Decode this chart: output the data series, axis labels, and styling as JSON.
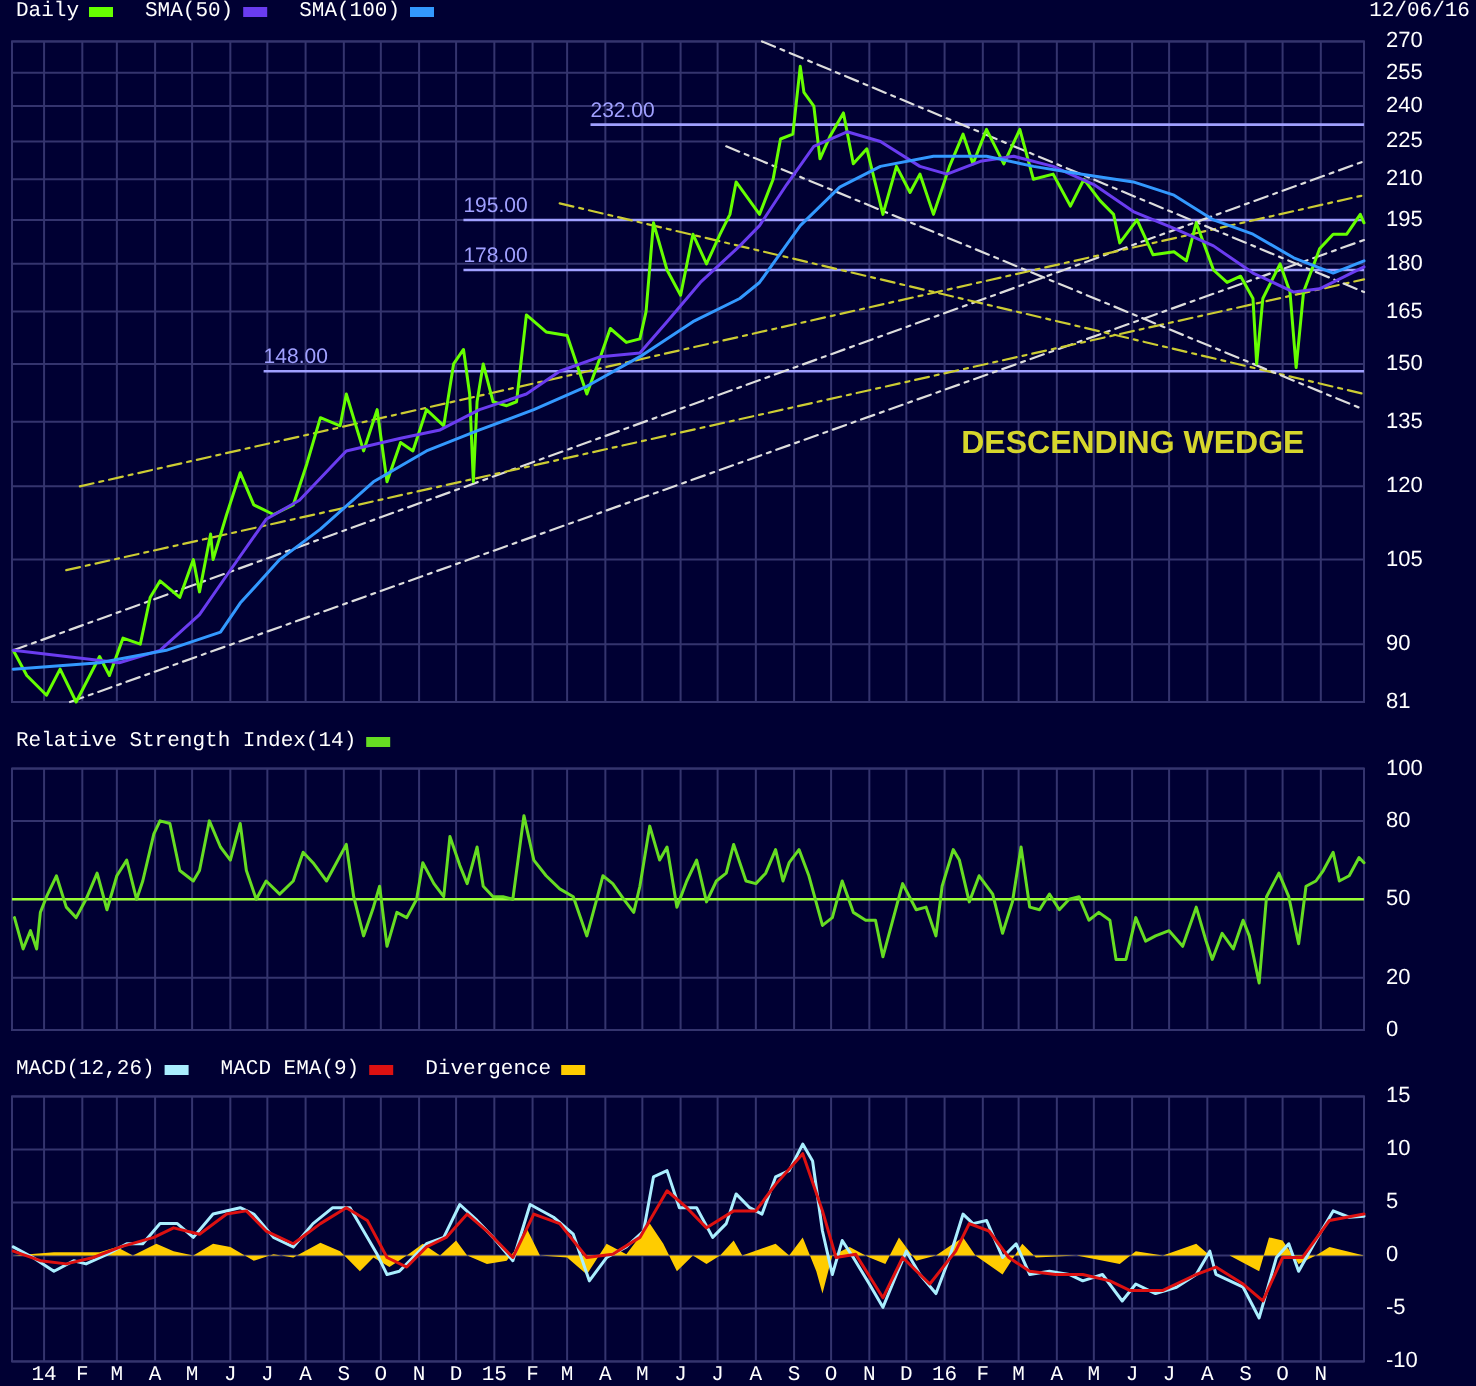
{
  "chart_data": [
    {
      "type": "line",
      "xlim": [
        "2013-12-06",
        "2016-12-06"
      ],
      "ylim": [
        81,
        270
      ],
      "log": true,
      "yticks": [
        81,
        90,
        105,
        120,
        135,
        150,
        165,
        180,
        195,
        210,
        225,
        240,
        255,
        270
      ],
      "xticks": [
        {
          "value": "2014-01-01",
          "label": null
        },
        {
          "value": "2014-02-01",
          "label": null
        },
        {
          "value": "2014-03-01",
          "label": null
        },
        {
          "value": "2014-04-01",
          "label": null
        },
        {
          "value": "2014-05-01",
          "label": null
        },
        {
          "value": "2014-06-01",
          "label": null
        },
        {
          "value": "2014-07-01",
          "label": null
        },
        {
          "value": "2014-08-01",
          "label": null
        },
        {
          "value": "2014-09-01",
          "label": null
        },
        {
          "value": "2014-10-01",
          "label": null
        },
        {
          "value": "2014-11-01",
          "label": null
        },
        {
          "value": "2014-12-01",
          "label": null
        },
        {
          "value": "2015-01-01",
          "label": null
        },
        {
          "value": "2015-02-01",
          "label": null
        },
        {
          "value": "2015-03-01",
          "label": null
        },
        {
          "value": "2015-04-01",
          "label": null
        },
        {
          "value": "2015-05-01",
          "label": null
        },
        {
          "value": "2015-06-01",
          "label": null
        },
        {
          "value": "2015-07-01",
          "label": null
        },
        {
          "value": "2015-08-01",
          "label": null
        },
        {
          "value": "2015-09-01",
          "label": null
        },
        {
          "value": "2015-10-01",
          "label": null
        },
        {
          "value": "2015-11-01",
          "label": null
        },
        {
          "value": "2015-12-01",
          "label": null
        },
        {
          "value": "2016-01-01",
          "label": null
        },
        {
          "value": "2016-02-01",
          "label": null
        },
        {
          "value": "2016-03-01",
          "label": null
        },
        {
          "value": "2016-04-01",
          "label": null
        },
        {
          "value": "2016-05-01",
          "label": null
        },
        {
          "value": "2016-06-01",
          "label": null
        },
        {
          "value": "2016-07-01",
          "label": null
        },
        {
          "value": "2016-08-01",
          "label": null
        },
        {
          "value": "2016-09-01",
          "label": null
        },
        {
          "value": "2016-10-01",
          "label": null
        },
        {
          "value": "2016-11-01",
          "label": null
        }
      ],
      "tick_labels": "y",
      "grid": true,
      "legend": "top left",
      "series": [
        {
          "name": "Daily",
          "color": "#66ff00",
          "x": [
            "2013-12-07",
            "2013-12-18",
            "2014-01-03",
            "2014-01-14",
            "2014-01-27",
            "2014-02-15",
            "2014-02-23",
            "2014-03-06",
            "2014-03-20",
            "2014-03-28",
            "2014-04-05",
            "2014-04-21",
            "2014-05-02",
            "2014-05-07",
            "2014-05-16",
            "2014-05-18",
            "2014-05-29",
            "2014-06-09",
            "2014-06-20",
            "2014-07-06",
            "2014-07-22",
            "2014-08-02",
            "2014-08-13",
            "2014-08-29",
            "2014-09-03",
            "2014-09-17",
            "2014-09-28",
            "2014-10-06",
            "2014-10-17",
            "2014-10-27",
            "2014-11-07",
            "2014-11-21",
            "2014-11-29",
            "2014-12-07",
            "2014-12-12",
            "2014-12-15",
            "2014-12-18",
            "2014-12-23",
            "2014-12-31",
            "2015-01-11",
            "2015-01-19",
            "2015-01-27",
            "2015-02-12",
            "2015-03-01",
            "2015-03-17",
            "2015-03-28",
            "2015-04-05",
            "2015-04-18",
            "2015-04-29",
            "2015-05-04",
            "2015-05-10",
            "2015-05-21",
            "2015-06-01",
            "2015-06-11",
            "2015-06-22",
            "2015-07-03",
            "2015-07-11",
            "2015-07-16",
            "2015-08-04",
            "2015-08-15",
            "2015-08-21",
            "2015-08-31",
            "2015-09-06",
            "2015-09-09",
            "2015-09-17",
            "2015-09-22",
            "2015-09-30",
            "2015-10-11",
            "2015-10-19",
            "2015-10-30",
            "2015-11-12",
            "2015-11-23",
            "2015-12-04",
            "2015-12-12",
            "2015-12-23",
            "2016-01-05",
            "2016-01-16",
            "2016-01-24",
            "2016-02-04",
            "2016-02-18",
            "2016-03-02",
            "2016-03-13",
            "2016-03-29",
            "2016-04-12",
            "2016-04-23",
            "2016-05-06",
            "2016-05-17",
            "2016-05-22",
            "2016-06-05",
            "2016-06-18",
            "2016-07-05",
            "2016-07-15",
            "2016-07-23",
            "2016-08-06",
            "2016-08-17",
            "2016-08-28",
            "2016-09-07",
            "2016-09-10",
            "2016-09-15",
            "2016-09-29",
            "2016-10-07",
            "2016-10-12",
            "2016-10-18",
            "2016-10-31",
            "2016-11-11",
            "2016-11-22",
            "2016-12-03",
            "2016-12-06"
          ],
          "values": [
            89,
            85,
            82,
            86,
            81,
            88,
            85,
            91,
            90,
            98,
            101,
            98,
            105,
            99,
            110,
            105,
            114,
            123,
            116,
            114,
            116,
            125,
            136,
            134,
            142,
            128,
            138,
            121,
            130,
            128,
            138,
            134,
            150,
            154,
            142,
            121,
            140,
            150,
            140,
            139,
            140,
            164,
            159,
            158,
            142,
            152,
            160,
            156,
            157,
            165,
            194,
            178,
            170,
            190,
            180,
            190,
            197,
            209,
            197,
            210,
            226,
            228,
            258,
            246,
            240,
            218,
            227,
            237,
            216,
            222,
            197,
            215,
            205,
            212,
            197,
            215,
            228,
            216,
            230,
            216,
            230,
            210,
            212,
            200,
            210,
            202,
            197,
            187,
            195,
            183,
            184,
            181,
            194,
            178,
            174,
            176,
            169,
            150,
            169,
            180,
            171,
            149,
            171,
            185,
            190,
            190,
            197,
            194
          ]
        },
        {
          "name": "SMA(50)",
          "color": "#6a3cf0",
          "x": [
            "2013-12-07",
            "2014-01-19",
            "2014-03-03",
            "2014-04-05",
            "2014-05-07",
            "2014-05-29",
            "2014-06-30",
            "2014-07-27",
            "2014-09-03",
            "2014-10-17",
            "2014-11-18",
            "2014-12-20",
            "2015-01-27",
            "2015-02-23",
            "2015-03-28",
            "2015-04-29",
            "2015-05-21",
            "2015-06-17",
            "2015-07-19",
            "2015-08-04",
            "2015-08-26",
            "2015-09-17",
            "2015-10-14",
            "2015-11-10",
            "2015-12-12",
            "2016-01-03",
            "2016-01-30",
            "2016-02-26",
            "2016-03-29",
            "2016-05-01",
            "2016-06-02",
            "2016-07-05",
            "2016-08-06",
            "2016-09-07",
            "2016-10-10",
            "2016-10-31",
            "2016-12-06"
          ],
          "values": [
            89,
            88,
            87,
            89,
            95,
            102,
            113,
            117,
            128,
            131,
            133,
            138,
            142,
            148,
            152,
            153,
            162,
            174,
            186,
            193,
            208,
            223,
            229,
            225,
            215,
            212,
            217,
            219,
            215,
            208,
            198,
            192,
            186,
            177,
            171,
            172,
            179
          ]
        },
        {
          "name": "SMA(100)",
          "color": "#3399ff",
          "x": [
            "2013-12-07",
            "2014-02-15",
            "2014-04-10",
            "2014-05-24",
            "2014-06-09",
            "2014-07-11",
            "2014-08-13",
            "2014-09-25",
            "2014-11-07",
            "2014-12-20",
            "2015-02-02",
            "2015-03-17",
            "2015-04-29",
            "2015-06-11",
            "2015-07-19",
            "2015-08-04",
            "2015-09-06",
            "2015-10-08",
            "2015-11-10",
            "2015-12-23",
            "2016-02-04",
            "2016-03-13",
            "2016-04-20",
            "2016-06-02",
            "2016-07-05",
            "2016-08-06",
            "2016-09-07",
            "2016-10-10",
            "2016-11-11",
            "2016-12-06"
          ],
          "values": [
            86,
            87,
            89,
            92,
            97,
            105,
            111,
            121,
            128,
            133,
            138,
            144,
            152,
            162,
            169,
            174,
            193,
            207,
            215,
            219,
            219,
            215,
            212,
            209,
            204,
            195,
            190,
            182,
            177,
            181
          ]
        },
        {
          "type": "line",
          "color": "#dddddd",
          "line_style": "dashed",
          "x": [
            "2013-12-07",
            "2016-12-06"
          ],
          "values": [
            89,
            217
          ]
        },
        {
          "type": "line",
          "color": "#dddddd",
          "line_style": "dashed",
          "x": [
            "2014-01-22",
            "2016-12-06"
          ],
          "values": [
            81,
            188
          ]
        },
        {
          "type": "line",
          "color": "#cccc33",
          "line_style": "dashed",
          "x": [
            "2014-01-30",
            "2016-12-06"
          ],
          "values": [
            120,
            204
          ]
        },
        {
          "type": "line",
          "color": "#cccc33",
          "line_style": "dashed",
          "x": [
            "2014-01-19",
            "2016-12-06"
          ],
          "values": [
            103,
            175
          ]
        },
        {
          "type": "line",
          "color": "#cccc33",
          "line_style": "dashed",
          "x": [
            "2015-02-23",
            "2016-12-06"
          ],
          "values": [
            201,
            142
          ]
        },
        {
          "type": "line",
          "color": "#dddddd",
          "line_style": "dashed",
          "x": [
            "2015-08-06",
            "2016-12-06"
          ],
          "values": [
            270,
            171
          ]
        },
        {
          "type": "line",
          "color": "#dddddd",
          "line_style": "dashed",
          "x": [
            "2015-07-08",
            "2016-12-06"
          ],
          "values": [
            223,
            138
          ]
        }
      ],
      "ref_lines": [
        {
          "axis": "y",
          "value": 232,
          "label": "232.00",
          "color": "#a0a0ff"
        },
        {
          "axis": "y",
          "value": 195,
          "label": "195.00",
          "color": "#a0a0ff"
        },
        {
          "axis": "y",
          "value": 178,
          "label": "178.00",
          "color": "#a0a0ff"
        },
        {
          "axis": "y",
          "value": 148,
          "label": "148.00",
          "color": "#a0a0ff"
        }
      ],
      "annotations": [
        "12/06/16",
        "DESCENDING WEDGE"
      ]
    },
    {
      "type": "line",
      "xlim": [
        "2013-12-06",
        "2016-12-06"
      ],
      "ylim": [
        0,
        100
      ],
      "yticks": [
        0,
        20,
        50,
        80,
        100
      ],
      "xticks": [
        {
          "value": "2014-01-01",
          "label": null
        },
        {
          "value": "2014-02-01",
          "label": null
        },
        {
          "value": "2014-03-01",
          "label": null
        },
        {
          "value": "2014-04-01",
          "label": null
        },
        {
          "value": "2014-05-01",
          "label": null
        },
        {
          "value": "2014-06-01",
          "label": null
        },
        {
          "value": "2014-07-01",
          "label": null
        },
        {
          "value": "2014-08-01",
          "label": null
        },
        {
          "value": "2014-09-01",
          "label": null
        },
        {
          "value": "2014-10-01",
          "label": null
        },
        {
          "value": "2014-11-01",
          "label": null
        },
        {
          "value": "2014-12-01",
          "label": null
        },
        {
          "value": "2015-01-01",
          "label": null
        },
        {
          "value": "2015-02-01",
          "label": null
        },
        {
          "value": "2015-03-01",
          "label": null
        },
        {
          "value": "2015-04-01",
          "label": null
        },
        {
          "value": "2015-05-01",
          "label": null
        },
        {
          "value": "2015-06-01",
          "label": null
        },
        {
          "value": "2015-07-01",
          "label": null
        },
        {
          "value": "2015-08-01",
          "label": null
        },
        {
          "value": "2015-09-01",
          "label": null
        },
        {
          "value": "2015-10-01",
          "label": null
        },
        {
          "value": "2015-11-01",
          "label": null
        },
        {
          "value": "2015-12-01",
          "label": null
        },
        {
          "value": "2016-01-01",
          "label": null
        },
        {
          "value": "2016-02-01",
          "label": null
        },
        {
          "value": "2016-03-01",
          "label": null
        },
        {
          "value": "2016-04-01",
          "label": null
        },
        {
          "value": "2016-05-01",
          "label": null
        },
        {
          "value": "2016-06-01",
          "label": null
        },
        {
          "value": "2016-07-01",
          "label": null
        },
        {
          "value": "2016-08-01",
          "label": null
        },
        {
          "value": "2016-09-01",
          "label": null
        },
        {
          "value": "2016-10-01",
          "label": null
        },
        {
          "value": "2016-11-01",
          "label": null
        }
      ],
      "tick_labels": "y",
      "grid": true,
      "legend": "top left",
      "series": [
        {
          "name": "Relative Strength Index(14)",
          "color": "#66dd22",
          "x": [
            "2013-12-08",
            "2013-12-15",
            "2013-12-21",
            "2013-12-26",
            "2013-12-29",
            "2014-01-03",
            "2014-01-11",
            "2014-01-19",
            "2014-01-27",
            "2014-02-04",
            "2014-02-13",
            "2014-02-21",
            "2014-03-01",
            "2014-03-09",
            "2014-03-17",
            "2014-03-22",
            "2014-03-31",
            "2014-04-05",
            "2014-04-13",
            "2014-04-21",
            "2014-05-02",
            "2014-05-07",
            "2014-05-15",
            "2014-05-24",
            "2014-06-01",
            "2014-06-09",
            "2014-06-14",
            "2014-06-22",
            "2014-06-30",
            "2014-07-11",
            "2014-07-22",
            "2014-07-30",
            "2014-08-07",
            "2014-08-18",
            "2014-08-26",
            "2014-09-03",
            "2014-09-09",
            "2014-09-17",
            "2014-09-25",
            "2014-09-30",
            "2014-10-06",
            "2014-10-14",
            "2014-10-22",
            "2014-10-30",
            "2014-11-04",
            "2014-11-13",
            "2014-11-21",
            "2014-11-26",
            "2014-12-04",
            "2014-12-10",
            "2014-12-18",
            "2014-12-23",
            "2014-12-31",
            "2015-01-08",
            "2015-01-16",
            "2015-01-25",
            "2015-02-02",
            "2015-02-12",
            "2015-02-23",
            "2015-03-06",
            "2015-03-17",
            "2015-03-25",
            "2015-03-30",
            "2015-04-07",
            "2015-04-16",
            "2015-04-24",
            "2015-04-29",
            "2015-05-07",
            "2015-05-15",
            "2015-05-21",
            "2015-05-29",
            "2015-06-06",
            "2015-06-14",
            "2015-06-22",
            "2015-06-30",
            "2015-07-08",
            "2015-07-14",
            "2015-07-24",
            "2015-08-01",
            "2015-08-09",
            "2015-08-17",
            "2015-08-23",
            "2015-08-28",
            "2015-09-05",
            "2015-09-13",
            "2015-09-24",
            "2015-10-02",
            "2015-10-10",
            "2015-10-19",
            "2015-10-29",
            "2015-11-06",
            "2015-11-12",
            "2015-11-20",
            "2015-11-28",
            "2015-12-09",
            "2015-12-17",
            "2015-12-25",
            "2015-12-30",
            "2016-01-08",
            "2016-01-13",
            "2016-01-21",
            "2016-01-29",
            "2016-02-09",
            "2016-02-17",
            "2016-02-25",
            "2016-03-03",
            "2016-03-10",
            "2016-03-18",
            "2016-03-26",
            "2016-04-03",
            "2016-04-11",
            "2016-04-19",
            "2016-04-27",
            "2016-05-05",
            "2016-05-14",
            "2016-05-19",
            "2016-05-27",
            "2016-06-04",
            "2016-06-12",
            "2016-06-20",
            "2016-07-01",
            "2016-07-12",
            "2016-07-23",
            "2016-07-31",
            "2016-08-05",
            "2016-08-13",
            "2016-08-22",
            "2016-08-30",
            "2016-09-04",
            "2016-09-12",
            "2016-09-18",
            "2016-09-28",
            "2016-10-06",
            "2016-10-14",
            "2016-10-20",
            "2016-10-28",
            "2016-11-03",
            "2016-11-11",
            "2016-11-16",
            "2016-11-24",
            "2016-12-02",
            "2016-12-06"
          ],
          "values": [
            43,
            31,
            38,
            31,
            45,
            51,
            59,
            47,
            43,
            50,
            60,
            46,
            59,
            65,
            50,
            57,
            75,
            80,
            79,
            61,
            57,
            61,
            80,
            70,
            65,
            79,
            61,
            50,
            57,
            52,
            57,
            68,
            64,
            57,
            64,
            71,
            51,
            36,
            47,
            55,
            32,
            45,
            43,
            50,
            64,
            56,
            51,
            74,
            63,
            56,
            70,
            55,
            51,
            51,
            50,
            82,
            65,
            59,
            54,
            51,
            36,
            50,
            59,
            56,
            50,
            45,
            55,
            78,
            65,
            70,
            47,
            57,
            65,
            49,
            57,
            60,
            71,
            57,
            56,
            60,
            69,
            57,
            64,
            69,
            59,
            40,
            43,
            57,
            45,
            42,
            42,
            28,
            42,
            56,
            46,
            47,
            36,
            55,
            69,
            65,
            49,
            59,
            52,
            37,
            49,
            70,
            47,
            46,
            52,
            46,
            50,
            51,
            42,
            45,
            42,
            27,
            27,
            43,
            34,
            36,
            38,
            32,
            47,
            34,
            27,
            37,
            31,
            42,
            36,
            18,
            51,
            60,
            51,
            33,
            55,
            57,
            61,
            68,
            57,
            59,
            66,
            64
          ]
        }
      ],
      "ref_lines": [
        {
          "axis": "y",
          "value": 50,
          "color": "#99ff33"
        }
      ]
    },
    {
      "type": "line",
      "xlim": [
        "2013-12-06",
        "2016-12-06"
      ],
      "ylim": [
        -10,
        15
      ],
      "yticks": [
        -10,
        -5,
        0,
        5,
        10,
        15
      ],
      "xticks": [
        {
          "value": "2014-01-01",
          "label": "14"
        },
        {
          "value": "2014-02-01",
          "label": "F"
        },
        {
          "value": "2014-03-01",
          "label": "M"
        },
        {
          "value": "2014-04-01",
          "label": "A"
        },
        {
          "value": "2014-05-01",
          "label": "M"
        },
        {
          "value": "2014-06-01",
          "label": "J"
        },
        {
          "value": "2014-07-01",
          "label": "J"
        },
        {
          "value": "2014-08-01",
          "label": "A"
        },
        {
          "value": "2014-09-01",
          "label": "S"
        },
        {
          "value": "2014-10-01",
          "label": "O"
        },
        {
          "value": "2014-11-01",
          "label": "N"
        },
        {
          "value": "2014-12-01",
          "label": "D"
        },
        {
          "value": "2015-01-01",
          "label": "15"
        },
        {
          "value": "2015-02-01",
          "label": "F"
        },
        {
          "value": "2015-03-01",
          "label": "M"
        },
        {
          "value": "2015-04-01",
          "label": "A"
        },
        {
          "value": "2015-05-01",
          "label": "M"
        },
        {
          "value": "2015-06-01",
          "label": "J"
        },
        {
          "value": "2015-07-01",
          "label": "J"
        },
        {
          "value": "2015-08-01",
          "label": "A"
        },
        {
          "value": "2015-09-01",
          "label": "S"
        },
        {
          "value": "2015-10-01",
          "label": "O"
        },
        {
          "value": "2015-11-01",
          "label": "N"
        },
        {
          "value": "2015-12-01",
          "label": "D"
        },
        {
          "value": "2016-01-01",
          "label": "16"
        },
        {
          "value": "2016-02-01",
          "label": "F"
        },
        {
          "value": "2016-03-01",
          "label": "M"
        },
        {
          "value": "2016-04-01",
          "label": "A"
        },
        {
          "value": "2016-05-01",
          "label": "M"
        },
        {
          "value": "2016-06-01",
          "label": "J"
        },
        {
          "value": "2016-07-01",
          "label": "J"
        },
        {
          "value": "2016-08-01",
          "label": "A"
        },
        {
          "value": "2016-09-01",
          "label": "S"
        },
        {
          "value": "2016-10-01",
          "label": "O"
        },
        {
          "value": "2016-11-01",
          "label": "N"
        }
      ],
      "grid": true,
      "legend": "top left",
      "series": [
        {
          "name": "MACD(12,26)",
          "color": "#aaeeff",
          "x": [
            "2013-12-07",
            "2013-12-23",
            "2014-01-09",
            "2014-01-25",
            "2014-02-04",
            "2014-02-21",
            "2014-03-09",
            "2014-03-22",
            "2014-04-05",
            "2014-04-19",
            "2014-05-02",
            "2014-05-18",
            "2014-06-09",
            "2014-06-20",
            "2014-07-06",
            "2014-07-22",
            "2014-08-07",
            "2014-08-23",
            "2014-09-06",
            "2014-09-17",
            "2014-09-28",
            "2014-10-06",
            "2014-10-16",
            "2014-10-27",
            "2014-11-07",
            "2014-11-21",
            "2014-12-04",
            "2014-12-18",
            "2014-12-31",
            "2015-01-16",
            "2015-01-30",
            "2015-02-18",
            "2015-03-06",
            "2015-03-19",
            "2015-04-02",
            "2015-04-18",
            "2015-05-02",
            "2015-05-10",
            "2015-05-21",
            "2015-05-31",
            "2015-06-14",
            "2015-06-27",
            "2015-07-08",
            "2015-07-16",
            "2015-07-27",
            "2015-08-06",
            "2015-08-17",
            "2015-08-28",
            "2015-09-08",
            "2015-09-16",
            "2015-09-24",
            "2015-10-02",
            "2015-10-10",
            "2015-10-19",
            "2015-11-01",
            "2015-11-12",
            "2015-11-23",
            "2015-12-01",
            "2015-12-12",
            "2015-12-25",
            "2016-01-05",
            "2016-01-16",
            "2016-01-24",
            "2016-02-04",
            "2016-02-17",
            "2016-02-28",
            "2016-03-10",
            "2016-03-26",
            "2016-04-11",
            "2016-04-22",
            "2016-05-08",
            "2016-05-24",
            "2016-06-04",
            "2016-06-20",
            "2016-07-07",
            "2016-07-23",
            "2016-08-03",
            "2016-08-08",
            "2016-08-30",
            "2016-09-12",
            "2016-09-26",
            "2016-10-06",
            "2016-10-14",
            "2016-10-28",
            "2016-11-11",
            "2016-11-24",
            "2016-12-06"
          ],
          "values": [
            0.8,
            -0.2,
            -1.5,
            -0.5,
            -0.8,
            0.1,
            1.1,
            1.1,
            3.0,
            3.0,
            1.7,
            3.9,
            4.5,
            3.9,
            1.7,
            0.8,
            3.0,
            4.5,
            4.5,
            2.3,
            0.1,
            -1.8,
            -1.5,
            -0.2,
            1.1,
            1.7,
            4.8,
            3.3,
            1.7,
            -0.5,
            4.8,
            3.6,
            2.0,
            -2.4,
            -0.2,
            0.8,
            2.3,
            7.4,
            8.0,
            4.5,
            4.5,
            1.7,
            3.0,
            5.8,
            4.5,
            3.9,
            7.4,
            8.0,
            10.5,
            8.9,
            2.3,
            -1.8,
            1.4,
            -0.2,
            -2.7,
            -4.9,
            -1.8,
            0.4,
            -1.8,
            -3.6,
            -0.2,
            3.9,
            3.0,
            3.3,
            -0.2,
            1.1,
            -1.8,
            -1.5,
            -1.8,
            -2.4,
            -1.8,
            -4.3,
            -2.7,
            -3.6,
            -3.0,
            -1.8,
            0.4,
            -1.8,
            -3.0,
            -5.9,
            -0.2,
            1.1,
            -1.5,
            1.4,
            4.2,
            3.6,
            3.7
          ]
        },
        {
          "name": "MACD EMA(9)",
          "color": "#dd1111",
          "x": [
            "2013-12-07",
            "2013-12-29",
            "2014-01-19",
            "2014-02-10",
            "2014-03-04",
            "2014-03-31",
            "2014-04-16",
            "2014-05-07",
            "2014-05-29",
            "2014-06-14",
            "2014-06-30",
            "2014-07-22",
            "2014-08-13",
            "2014-09-03",
            "2014-09-20",
            "2014-10-06",
            "2014-10-22",
            "2014-11-07",
            "2014-11-23",
            "2014-12-10",
            "2014-12-26",
            "2015-01-16",
            "2015-02-02",
            "2015-02-23",
            "2015-03-17",
            "2015-04-07",
            "2015-04-29",
            "2015-05-21",
            "2015-06-06",
            "2015-06-22",
            "2015-07-14",
            "2015-08-01",
            "2015-08-17",
            "2015-09-08",
            "2015-09-24",
            "2015-10-05",
            "2015-10-21",
            "2015-11-12",
            "2015-11-28",
            "2015-12-20",
            "2016-01-10",
            "2016-01-21",
            "2016-02-06",
            "2016-02-22",
            "2016-03-10",
            "2016-03-31",
            "2016-04-22",
            "2016-05-14",
            "2016-05-30",
            "2016-06-26",
            "2016-07-23",
            "2016-08-08",
            "2016-08-30",
            "2016-09-15",
            "2016-10-01",
            "2016-10-17",
            "2016-11-08",
            "2016-12-06"
          ],
          "values": [
            0.4,
            -0.5,
            -0.8,
            -0.2,
            0.8,
            1.7,
            2.6,
            2.0,
            3.9,
            4.2,
            2.3,
            1.1,
            3.0,
            4.5,
            3.3,
            -0.2,
            -1.1,
            0.8,
            1.7,
            3.9,
            2.3,
            -0.2,
            3.9,
            3.0,
            -0.2,
            0.1,
            1.7,
            6.1,
            4.5,
            2.6,
            4.2,
            4.2,
            6.7,
            9.6,
            4.2,
            -0.2,
            0.1,
            -4.0,
            -0.2,
            -2.7,
            0.4,
            3.0,
            2.3,
            -0.2,
            -1.5,
            -1.8,
            -1.8,
            -2.4,
            -3.3,
            -3.3,
            -1.8,
            -1.1,
            -2.7,
            -4.3,
            -0.2,
            -0.2,
            3.3,
            3.9
          ]
        },
        {
          "name": "Divergence",
          "type": "area",
          "color": "#ffcc00",
          "x": [
            "2013-12-07",
            "2014-01-09",
            "2014-02-15",
            "2014-03-01",
            "2014-03-14",
            "2014-04-02",
            "2014-04-16",
            "2014-05-02",
            "2014-05-18",
            "2014-06-01",
            "2014-06-20",
            "2014-07-06",
            "2014-07-22",
            "2014-08-13",
            "2014-08-29",
            "2014-09-14",
            "2014-09-25",
            "2014-10-08",
            "2014-10-22",
            "2014-11-04",
            "2014-11-18",
            "2014-12-01",
            "2014-12-10",
            "2014-12-26",
            "2015-01-11",
            "2015-01-22",
            "2015-01-27",
            "2015-02-07",
            "2015-03-01",
            "2015-03-17",
            "2015-04-02",
            "2015-04-18",
            "2015-05-07",
            "2015-05-18",
            "2015-05-29",
            "2015-06-11",
            "2015-06-22",
            "2015-07-03",
            "2015-07-14",
            "2015-07-21",
            "2015-08-17",
            "2015-08-28",
            "2015-09-08",
            "2015-09-19",
            "2015-09-24",
            "2015-10-02",
            "2015-10-16",
            "2015-11-01",
            "2015-11-14",
            "2015-11-25",
            "2015-12-09",
            "2015-12-25",
            "2016-01-08",
            "2016-01-16",
            "2016-01-26",
            "2016-02-17",
            "2016-03-04",
            "2016-03-15",
            "2016-04-17",
            "2016-05-22",
            "2016-06-04",
            "2016-06-26",
            "2016-07-23",
            "2016-08-03",
            "2016-08-19",
            "2016-09-12",
            "2016-09-20",
            "2016-10-01",
            "2016-10-14",
            "2016-10-28",
            "2016-11-08",
            "2016-12-06"
          ],
          "values": [
            0,
            0.3,
            0.3,
            0.8,
            0,
            1.1,
            0.4,
            0,
            1.1,
            0.8,
            -0.5,
            0.1,
            -0.2,
            1.2,
            0.4,
            -1.5,
            -0.2,
            -1.1,
            0,
            1.1,
            0,
            1.4,
            0,
            -0.8,
            -0.5,
            1.1,
            2.6,
            0,
            -0.2,
            -1.8,
            1.1,
            0.1,
            3.0,
            1.1,
            -1.5,
            0,
            -0.8,
            0,
            1.4,
            0,
            1.1,
            0,
            1.7,
            -1.5,
            -3.6,
            0,
            0.8,
            -0.2,
            -0.8,
            1.7,
            -0.5,
            0,
            1.1,
            1.7,
            0,
            -1.8,
            1.1,
            -0.2,
            0,
            -0.8,
            0.4,
            0,
            1.1,
            0,
            0,
            -1.5,
            1.7,
            1.4,
            -0.8,
            0,
            0.8,
            0
          ]
        }
      ]
    }
  ]
}
